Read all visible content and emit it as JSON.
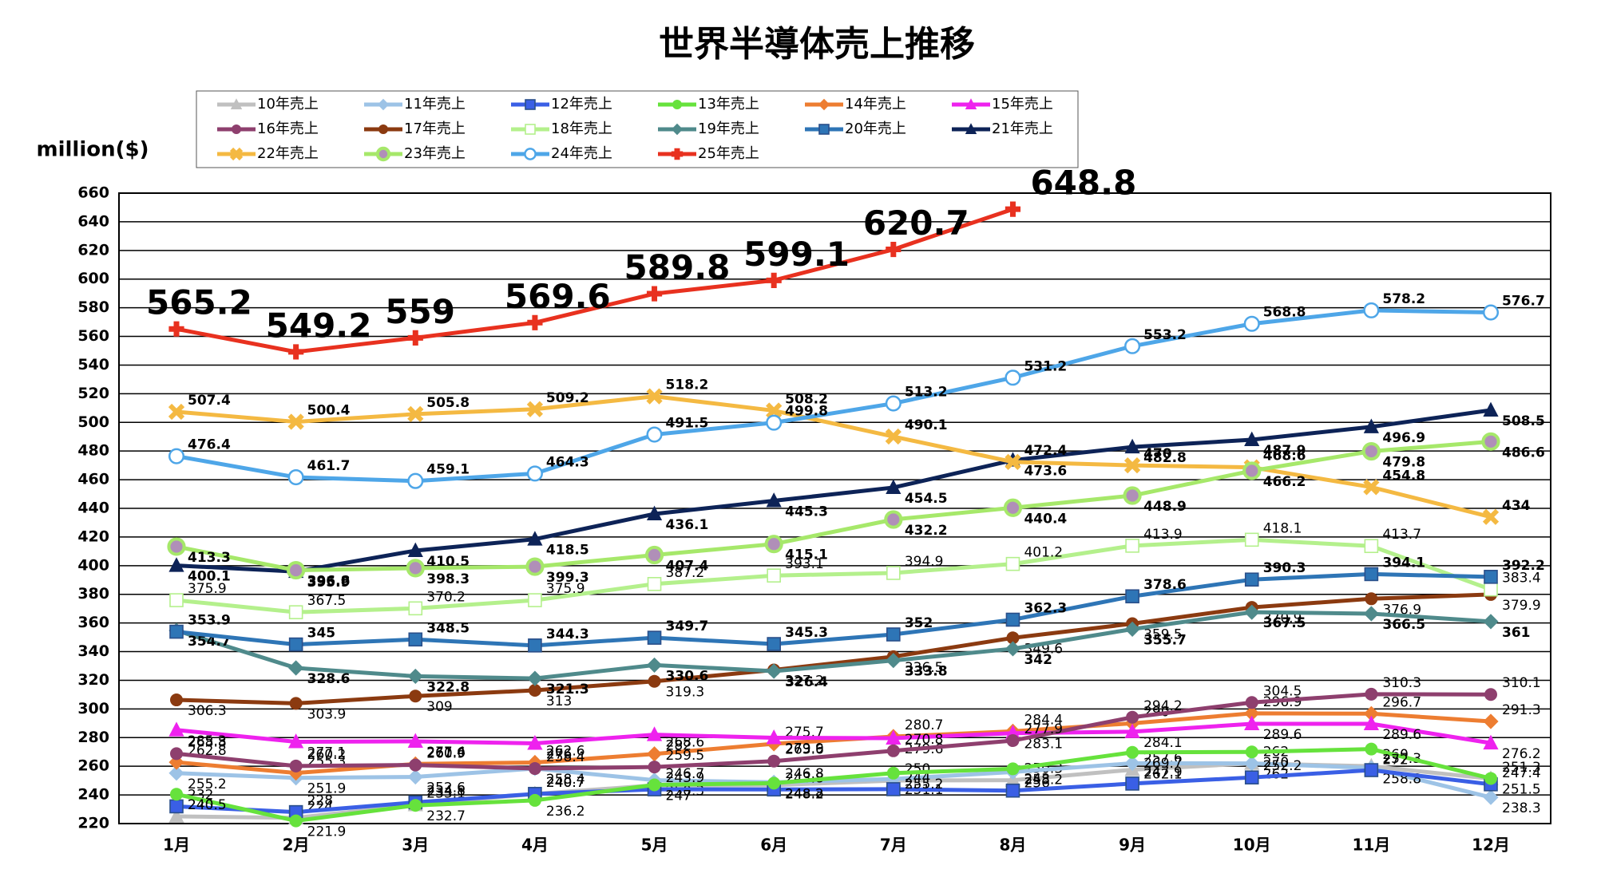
{
  "chart_data": {
    "type": "line",
    "title": "世界半導体売上推移",
    "y_label": "million($)",
    "categories": [
      "1月",
      "2月",
      "3月",
      "4月",
      "5月",
      "6月",
      "7月",
      "8月",
      "9月",
      "10月",
      "11月",
      "12月"
    ],
    "ylim": [
      220,
      660
    ],
    "yticks": [
      220,
      240,
      260,
      280,
      300,
      320,
      340,
      360,
      380,
      400,
      420,
      440,
      460,
      480,
      500,
      520,
      540,
      560,
      580,
      600,
      620,
      640,
      660
    ],
    "grid": true,
    "series": [
      {
        "name": "10年売上",
        "color": "#c0c0c0",
        "marker": "triangle",
        "values": [
          225,
          224,
          233.1,
          240.7,
          246.7,
          246.8,
          250,
          250.3,
          257.6,
          262,
          260,
          251.3
        ]
      },
      {
        "name": "11年売上",
        "color": "#9dc3e6",
        "marker": "diamond",
        "values": [
          255.2,
          251.9,
          252.6,
          258.4,
          250.3,
          248.8,
          251.1,
          256,
          262.1,
          262,
          258.8,
          238.3
        ]
      },
      {
        "name": "12年売上",
        "color": "#3a5fe5",
        "marker": "square",
        "values": [
          232,
          228,
          234.8,
          240.7,
          243.9,
          243.8,
          244,
          243,
          247.9,
          252.2,
          257.3,
          247.4
        ]
      },
      {
        "name": "13年売上",
        "color": "#66e23c",
        "marker": "circle",
        "values": [
          240.5,
          221.9,
          232.7,
          236.2,
          247,
          248.2,
          255.2,
          258.2,
          269.7,
          270,
          272,
          251.5
        ]
      },
      {
        "name": "14年売上",
        "color": "#ed7d31",
        "marker": "diamond",
        "values": [
          262.8,
          255.3,
          261.6,
          262.6,
          268.6,
          275.7,
          280.7,
          284.4,
          290,
          296.9,
          296.7,
          291.3
        ]
      },
      {
        "name": "15年売上",
        "color": "#ee22ee",
        "marker": "triangle",
        "values": [
          285.3,
          277.1,
          277.4,
          276.0,
          282,
          279.9,
          279.6,
          283.1,
          284.1,
          289.6,
          289.6,
          276.2
        ]
      },
      {
        "name": "16年売上",
        "color": "#8e3f6e",
        "marker": "circle",
        "values": [
          268.8,
          260.2,
          260.9,
          258.4,
          259.5,
          263.6,
          270.8,
          277.9,
          294.2,
          304.5,
          310.3,
          310.1
        ]
      },
      {
        "name": "17年売上",
        "color": "#8b3a10",
        "marker": "circle",
        "values": [
          306.3,
          303.9,
          309,
          313,
          319.3,
          327.2,
          336.5,
          349.6,
          359.5,
          370.9,
          376.9,
          379.9
        ]
      },
      {
        "name": "18年売上",
        "color": "#b4f08c",
        "marker": "square-open",
        "values": [
          375.9,
          367.5,
          370.2,
          375.9,
          387.2,
          393.1,
          394.9,
          401.2,
          413.9,
          418.1,
          413.7,
          383.4
        ]
      },
      {
        "name": "19年売上",
        "color": "#4f8a8b",
        "marker": "diamond",
        "values": [
          354.7,
          328.6,
          322.8,
          321.3,
          330.6,
          326.4,
          333.8,
          342,
          355.7,
          367.5,
          366.5,
          361
        ]
      },
      {
        "name": "20年売上",
        "color": "#2e75b6",
        "marker": "square",
        "values": [
          353.9,
          345,
          348.5,
          344.3,
          349.7,
          345.3,
          352,
          362.3,
          378.6,
          390.3,
          394.1,
          392.2
        ]
      },
      {
        "name": "21年売上",
        "color": "#0d2357",
        "marker": "triangle",
        "values": [
          400.1,
          395.9,
          410.5,
          418.5,
          436.1,
          445.3,
          454.5,
          473.6,
          482.8,
          487.9,
          496.9,
          508.5
        ]
      },
      {
        "name": "22年売上",
        "color": "#f4b942",
        "marker": "x",
        "values": [
          507.4,
          500.4,
          505.8,
          509.2,
          518.2,
          508.2,
          490.1,
          472.4,
          470,
          468.6,
          454.8,
          434
        ]
      },
      {
        "name": "23年売上",
        "color": "#a6e86a",
        "marker": "dot-circle",
        "values": [
          413.3,
          396.8,
          398.3,
          399.3,
          407.4,
          415.1,
          432.2,
          440.4,
          448.9,
          466.2,
          479.8,
          486.6
        ]
      },
      {
        "name": "24年売上",
        "color": "#4ea6e8",
        "marker": "circle-open",
        "values": [
          476.4,
          461.7,
          459.1,
          464.3,
          491.5,
          499.8,
          513.2,
          531.2,
          553.2,
          568.8,
          578.2,
          576.7
        ]
      },
      {
        "name": "25年売上",
        "color": "#e8311f",
        "marker": "plus",
        "values": [
          565.2,
          549.2,
          559,
          569.6,
          589.8,
          599.1,
          620.7,
          648.8,
          null,
          null,
          null,
          null
        ]
      }
    ]
  }
}
